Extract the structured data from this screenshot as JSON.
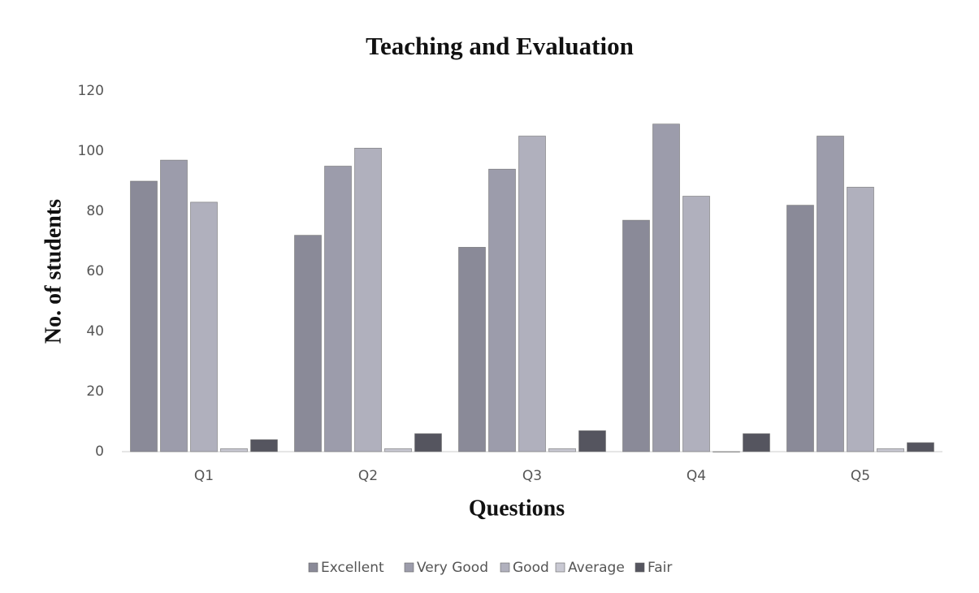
{
  "chart_data": {
    "type": "bar",
    "title": "Teaching and Evaluation",
    "xlabel": "Questions",
    "ylabel": "No. of students",
    "categories": [
      "Q1",
      "Q2",
      "Q3",
      "Q4",
      "Q5"
    ],
    "series": [
      {
        "name": "Excellent",
        "color": "#8a8a98",
        "values": [
          90,
          72,
          68,
          77,
          82
        ]
      },
      {
        "name": "Very Good",
        "color": "#9c9cab",
        "values": [
          97,
          95,
          94,
          109,
          105
        ]
      },
      {
        "name": "Good",
        "color": "#b0b0bd",
        "values": [
          83,
          101,
          105,
          85,
          88
        ]
      },
      {
        "name": "Average",
        "color": "#c9c9d3",
        "values": [
          1,
          1,
          1,
          0,
          1
        ]
      },
      {
        "name": "Fair",
        "color": "#55555f",
        "values": [
          4,
          6,
          7,
          6,
          3
        ]
      }
    ],
    "ylim": [
      0,
      120
    ],
    "yticks": [
      0,
      20,
      40,
      60,
      80,
      100,
      120
    ],
    "grid": false,
    "legend": "bottom"
  }
}
